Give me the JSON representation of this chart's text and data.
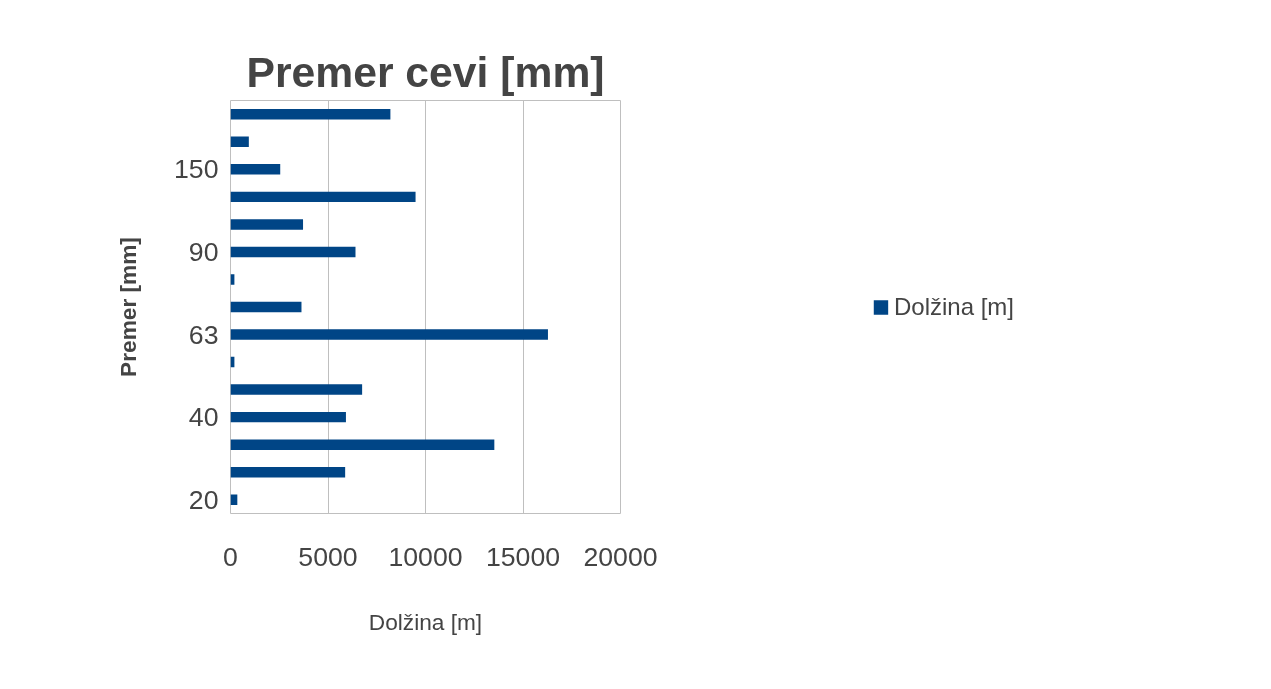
{
  "chart_data": {
    "type": "bar",
    "orientation": "horizontal",
    "title": "Premer cevi [mm]",
    "xlabel": "Dolžina [m]",
    "ylabel": "Premer [mm]",
    "categories": [
      null,
      null,
      "150",
      null,
      null,
      "90",
      null,
      null,
      "63",
      null,
      null,
      "40",
      null,
      null,
      "20"
    ],
    "series": [
      {
        "name": "Dolžina [m]",
        "color": "#004586",
        "values": [
          8200,
          940,
          2550,
          9490,
          3720,
          6410,
          200,
          3640,
          16280,
          200,
          6750,
          5920,
          13530,
          5880,
          350
        ]
      }
    ],
    "xlim": [
      0,
      20000
    ],
    "xticks": [
      0,
      5000,
      10000,
      15000,
      20000
    ],
    "grid": "x",
    "legend": "right"
  }
}
